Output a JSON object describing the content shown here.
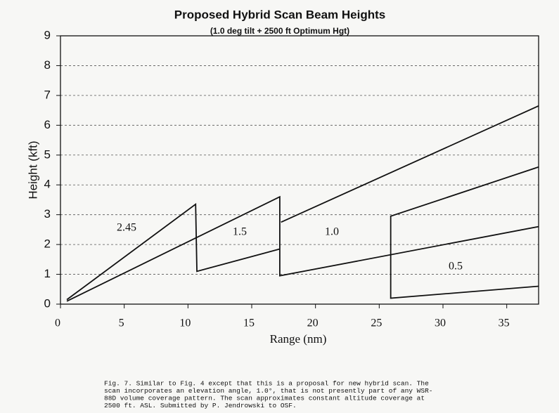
{
  "chart_data": {
    "type": "line",
    "title": "Proposed Hybrid Scan Beam Heights",
    "subtitle": "(1.0 deg tilt + 2500 ft Optimum Hgt)",
    "x_label": "Range (nm)",
    "y_label": "Height (kft)",
    "xlim": [
      0,
      37.5
    ],
    "xticks": [
      0,
      5,
      10,
      15,
      20,
      25,
      30,
      35
    ],
    "ylim": [
      0,
      9
    ],
    "yticks": [
      0,
      1,
      2,
      3,
      4,
      5,
      6,
      7,
      8,
      9
    ],
    "grid": true,
    "series": [
      {
        "color": "#111111",
        "x": [
          0.5,
          10.6,
          10.7,
          17.2
        ],
        "values": [
          0.15,
          3.35,
          1.1,
          1.85
        ]
      },
      {
        "color": "#111111",
        "x": [
          0.5,
          17.2,
          17.2,
          37.5
        ],
        "values": [
          0.1,
          3.6,
          0.95,
          2.6
        ]
      },
      {
        "color": "#111111",
        "x": [
          17.3,
          37.5
        ],
        "values": [
          2.75,
          6.65
        ]
      },
      {
        "color": "#111111",
        "x": [
          37.5,
          25.9,
          25.9,
          37.5
        ],
        "values": [
          4.6,
          2.95,
          0.2,
          0.6
        ]
      }
    ],
    "annotations": [
      "2.45",
      "1.5",
      "1.0",
      "0.5"
    ],
    "caption": [
      "Fig. 7.  Similar to Fig. 4 except that this is a proposal for new hybrid scan.  The",
      "scan incorporates an elevation angle, 1.0°, that is not presently part of any WSR-",
      "88D volume coverage pattern.  The scan approximates constant altitude coverage at",
      "2500 ft. ASL.  Submitted by P. Jendrowski to OSF."
    ]
  }
}
